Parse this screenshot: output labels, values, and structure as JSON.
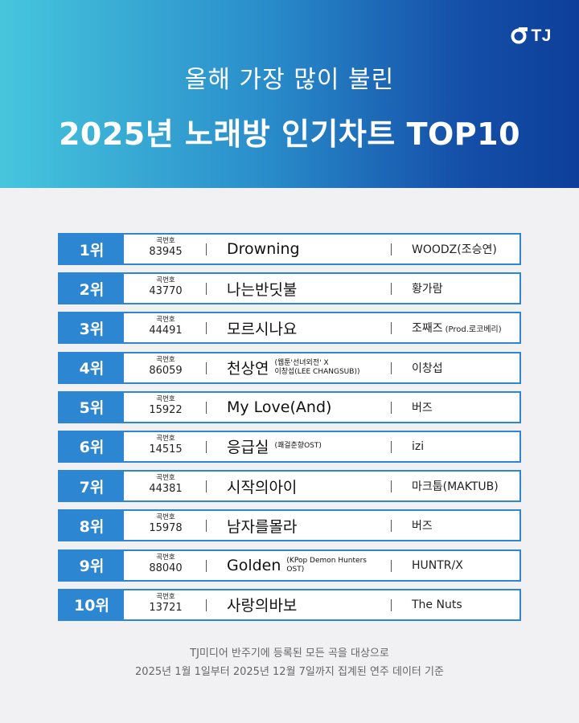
{
  "brand": {
    "logo_text": "TJ",
    "logo_icon": "tj-circle-logo-icon",
    "accent": "#2d86d1"
  },
  "header": {
    "subtitle": "올해 가장 많이 불린",
    "title": "2025년 노래방 인기차트 TOP10"
  },
  "chart": {
    "rows": [
      {
        "rank": "1위",
        "num_label": "곡번호",
        "num": "83945",
        "title": "Drowning",
        "title_note": "",
        "artist": "WOODZ(조승연)",
        "artist_note": ""
      },
      {
        "rank": "2위",
        "num_label": "곡번호",
        "num": "43770",
        "title": "나는반딧불",
        "title_note": "",
        "artist": "황가람",
        "artist_note": ""
      },
      {
        "rank": "3위",
        "num_label": "곡번호",
        "num": "44491",
        "title": "모르시나요",
        "title_note": "",
        "artist": "조째즈",
        "artist_note": "(Prod.로코베리)"
      },
      {
        "rank": "4위",
        "num_label": "곡번호",
        "num": "86059",
        "title": "천상연",
        "title_note": "(웹툰'선녀외전' X\n이창섭(LEE CHANGSUB))",
        "artist": "이창섭",
        "artist_note": ""
      },
      {
        "rank": "5위",
        "num_label": "곡번호",
        "num": "15922",
        "title": "My Love(And)",
        "title_note": "",
        "artist": "버즈",
        "artist_note": ""
      },
      {
        "rank": "6위",
        "num_label": "곡번호",
        "num": "14515",
        "title": "응급실",
        "title_note": "(쾌걸춘향OST)",
        "artist": "izi",
        "artist_note": ""
      },
      {
        "rank": "7위",
        "num_label": "곡번호",
        "num": "44381",
        "title": "시작의아이",
        "title_note": "",
        "artist": "마크툽(MAKTUB)",
        "artist_note": ""
      },
      {
        "rank": "8위",
        "num_label": "곡번호",
        "num": "15978",
        "title": "남자를몰라",
        "title_note": "",
        "artist": "버즈",
        "artist_note": ""
      },
      {
        "rank": "9위",
        "num_label": "곡번호",
        "num": "88040",
        "title": "Golden",
        "title_note": "(KPop Demon Hunters\nOST)",
        "artist": "HUNTR/X",
        "artist_note": ""
      },
      {
        "rank": "10위",
        "num_label": "곡번호",
        "num": "13721",
        "title": "사랑의바보",
        "title_note": "",
        "artist": "The Nuts",
        "artist_note": ""
      }
    ]
  },
  "footer": {
    "line1": "TJ미디어 반주기에 등록된 모든 곡을 대상으로",
    "line2": "2025년 1월 1일부터 2025년 12월 7일까지 집계된 연주 데이터 기준"
  }
}
